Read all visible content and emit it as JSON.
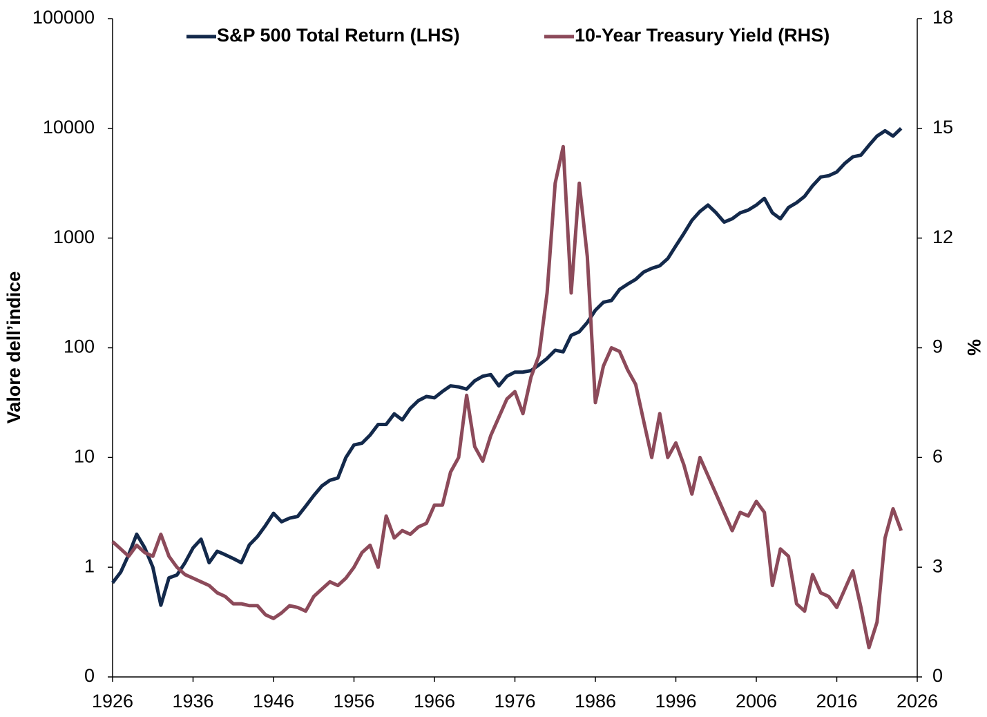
{
  "chart_data": {
    "type": "line",
    "yscale": "log",
    "legend": "top",
    "ylabel": "Valore dell’indice",
    "y2label": "%",
    "xlim": [
      1926,
      2026
    ],
    "xticks": [
      1926,
      1936,
      1946,
      1956,
      1966,
      1976,
      1986,
      1996,
      2006,
      2016,
      2026
    ],
    "ylim": [
      0.1,
      100000
    ],
    "yticks": [
      {
        "value": 0.1,
        "label": "0"
      },
      1,
      10,
      100,
      1000,
      10000,
      100000
    ],
    "y2lim": [
      0,
      18
    ],
    "y2ticks": [
      0,
      3,
      6,
      9,
      12,
      15,
      18
    ],
    "x": [
      1926,
      1927,
      1928,
      1929,
      1930,
      1931,
      1932,
      1933,
      1934,
      1935,
      1936,
      1937,
      1938,
      1939,
      1940,
      1941,
      1942,
      1943,
      1944,
      1945,
      1946,
      1947,
      1948,
      1949,
      1950,
      1951,
      1952,
      1953,
      1954,
      1955,
      1956,
      1957,
      1958,
      1959,
      1960,
      1961,
      1962,
      1963,
      1964,
      1965,
      1966,
      1967,
      1968,
      1969,
      1970,
      1971,
      1972,
      1973,
      1974,
      1975,
      1976,
      1977,
      1978,
      1979,
      1980,
      1981,
      1982,
      1983,
      1984,
      1985,
      1986,
      1987,
      1988,
      1989,
      1990,
      1991,
      1992,
      1993,
      1994,
      1995,
      1996,
      1997,
      1998,
      1999,
      2000,
      2001,
      2002,
      2003,
      2004,
      2005,
      2006,
      2007,
      2008,
      2009,
      2010,
      2011,
      2012,
      2013,
      2014,
      2015,
      2016,
      2017,
      2018,
      2019,
      2020,
      2021,
      2022,
      2023,
      2024
    ],
    "series": [
      {
        "name": "S&P 500 Total Return (LHS)",
        "color": "#13294b",
        "values": [
          0.72,
          0.9,
          1.3,
          2.0,
          1.5,
          1.0,
          0.45,
          0.8,
          0.85,
          1.1,
          1.5,
          1.8,
          1.1,
          1.4,
          1.3,
          1.2,
          1.1,
          1.6,
          1.9,
          2.4,
          3.1,
          2.6,
          2.8,
          2.9,
          3.6,
          4.5,
          5.5,
          6.2,
          6.5,
          10,
          13,
          13.5,
          16,
          20,
          20,
          25,
          22,
          28,
          33,
          36,
          35,
          40,
          45,
          44,
          42,
          50,
          55,
          57,
          45,
          55,
          60,
          60,
          62,
          70,
          80,
          95,
          92,
          130,
          140,
          170,
          220,
          260,
          270,
          340,
          380,
          420,
          490,
          530,
          560,
          650,
          850,
          1100,
          1450,
          1750,
          2000,
          1700,
          1400,
          1500,
          1700,
          1800,
          2000,
          2300,
          1700,
          1500,
          1900,
          2100,
          2400,
          3000,
          3600,
          3700,
          4000,
          4800,
          5500,
          5700,
          7000,
          8500,
          9500,
          8500,
          10000
        ]
      },
      {
        "name": "10-Year Treasury Yield (RHS)",
        "color": "#8c4a5a",
        "axis": "y2",
        "values": [
          3.7,
          3.5,
          3.3,
          3.6,
          3.4,
          3.3,
          3.9,
          3.3,
          3.0,
          2.8,
          2.7,
          2.6,
          2.5,
          2.3,
          2.2,
          2.0,
          2.0,
          1.95,
          1.95,
          1.7,
          1.6,
          1.75,
          1.95,
          1.9,
          1.8,
          2.2,
          2.4,
          2.6,
          2.5,
          2.7,
          3.0,
          3.4,
          3.6,
          3.0,
          4.4,
          3.8,
          4.0,
          3.9,
          4.1,
          4.2,
          4.7,
          4.7,
          5.6,
          6.0,
          7.7,
          6.3,
          5.9,
          6.6,
          7.1,
          7.6,
          7.8,
          7.2,
          8.2,
          8.8,
          10.5,
          13.5,
          14.5,
          10.5,
          13.5,
          11.5,
          7.5,
          8.5,
          9.0,
          8.9,
          8.4,
          8.0,
          7.0,
          6.0,
          7.2,
          6.0,
          6.4,
          5.8,
          5.0,
          6.0,
          5.5,
          5.0,
          4.5,
          4.0,
          4.5,
          4.4,
          4.8,
          4.5,
          2.5,
          3.5,
          3.3,
          2.0,
          1.8,
          2.8,
          2.3,
          2.2,
          1.9,
          2.4,
          2.9,
          1.9,
          0.8,
          1.5,
          3.8,
          4.6,
          4.0
        ]
      }
    ]
  }
}
